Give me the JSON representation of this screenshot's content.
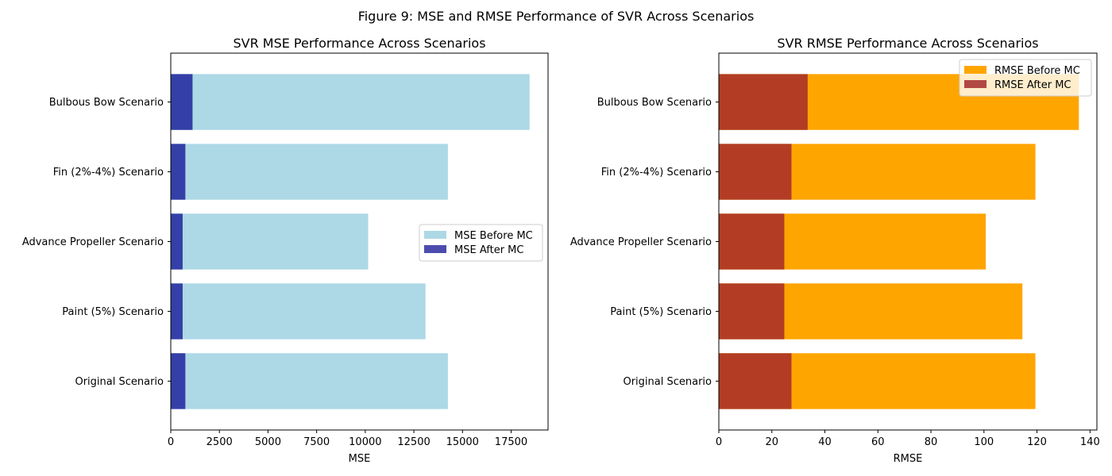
{
  "suptitle": "Figure 9: MSE and RMSE Performance of SVR Across Scenarios",
  "colors": {
    "mse_before": "#add8e6",
    "mse_after": "#00008b",
    "rmse_before": "#ffa500",
    "rmse_after": "#a52a2a"
  },
  "chart_data": [
    {
      "type": "bar",
      "orientation": "horizontal",
      "stacking": "overlay",
      "title": "SVR MSE Performance Across Scenarios",
      "xlabel": "MSE",
      "ylabel": "",
      "categories": [
        "Original Scenario",
        "Paint (5%) Scenario",
        "Advance Propeller Scenario",
        "Fin (2%-4%) Scenario",
        "Bulbous Bow Scenario"
      ],
      "series": [
        {
          "name": "MSE Before MC",
          "values": [
            14250,
            13100,
            10150,
            14250,
            18450
          ],
          "color": "#add8e6",
          "opacity": 1.0
        },
        {
          "name": "MSE After MC",
          "values": [
            750,
            610,
            610,
            750,
            1120
          ],
          "color": "#00008b",
          "opacity": 0.7
        }
      ],
      "xlim": [
        0,
        19400
      ],
      "xticks": [
        0,
        2500,
        5000,
        7500,
        10000,
        12500,
        15000,
        17500
      ],
      "legend": "center-right",
      "grid": false
    },
    {
      "type": "bar",
      "orientation": "horizontal",
      "stacking": "overlay",
      "title": "SVR RMSE Performance Across Scenarios",
      "xlabel": "RMSE",
      "ylabel": "",
      "categories": [
        "Original Scenario",
        "Paint (5%) Scenario",
        "Advance Propeller Scenario",
        "Fin (2%-4%) Scenario",
        "Bulbous Bow Scenario"
      ],
      "series": [
        {
          "name": "RMSE Before MC",
          "values": [
            119.4,
            114.5,
            100.7,
            119.4,
            135.8
          ],
          "color": "#ffa500",
          "opacity": 1.0
        },
        {
          "name": "RMSE After MC",
          "values": [
            27.4,
            24.7,
            24.7,
            27.4,
            33.5
          ],
          "color": "#a52a2a",
          "opacity": 0.85
        }
      ],
      "xlim": [
        0,
        142.6
      ],
      "xticks": [
        0,
        20,
        40,
        60,
        80,
        100,
        120,
        140
      ],
      "legend": "upper-right",
      "grid": false
    }
  ]
}
